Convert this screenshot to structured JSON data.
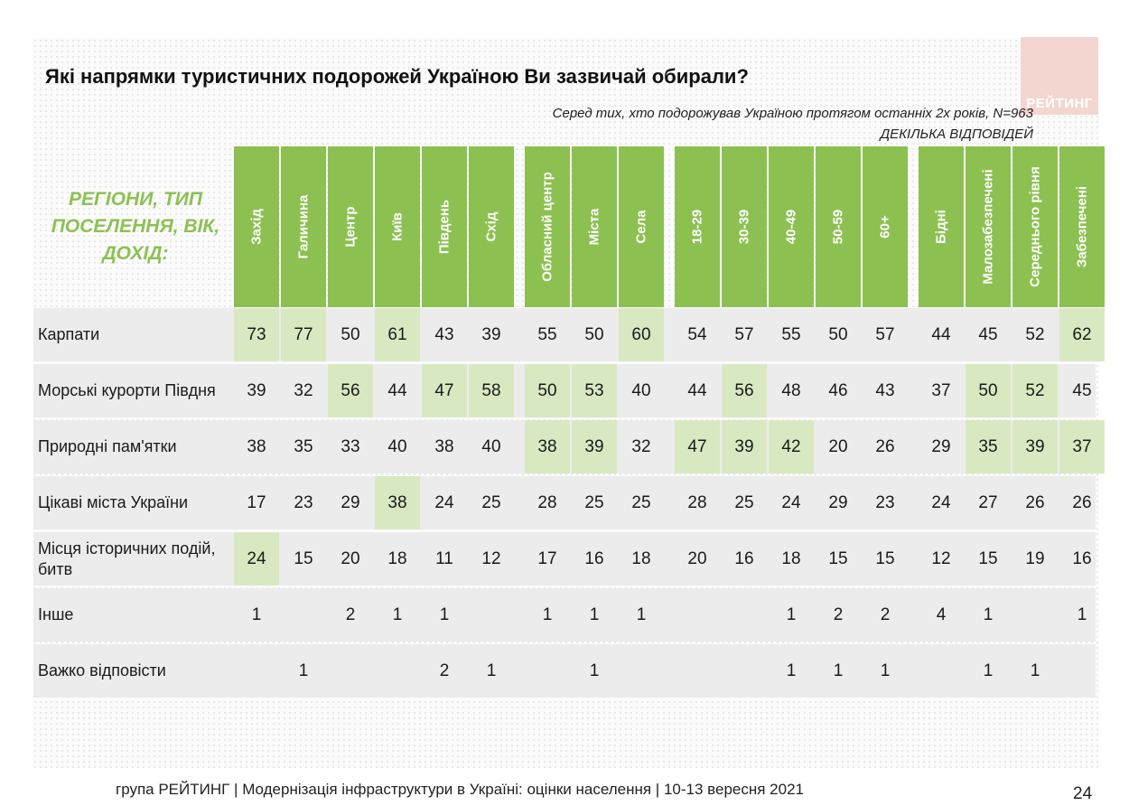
{
  "title": "Які напрямки туристичних подорожей Україною Ви зазвичай обирали?",
  "subtitle": "Серед тих, хто подорожував Україною протягом останніх 2х років, N=963",
  "subtitle2": "ДЕКІЛЬКА ВІДПОВІДЕЙ",
  "category_label": "РЕГІОНИ, ТИП ПОСЕЛЕННЯ, ВІК, ДОХІД:",
  "logo_text": "РЕЙТИНГ",
  "footer": "група РЕЙТИНГ | Модернізація інфраструктури в Україні: оцінки населення | 10-13 вересня 2021",
  "page_number": "24",
  "colors": {
    "header_green": "#8cc152",
    "highlight": "#d8e9c2",
    "row_bg": "#ececec",
    "logo_bg": "#f3d6d0"
  },
  "chart_data": {
    "type": "table",
    "title": "Які напрямки туристичних подорожей Україною Ви зазвичай обирали?",
    "column_groups": [
      [
        "Захід",
        "Галичина",
        "Центр",
        "Київ",
        "Південь",
        "Схід"
      ],
      [
        "Обласний центр",
        "Міста",
        "Села"
      ],
      [
        "18-29",
        "30-39",
        "40-49",
        "50-59",
        "60+"
      ],
      [
        "Бідні",
        "Малозабезпечені",
        "Середнього рівня",
        "Забезпечені"
      ]
    ],
    "columns": [
      "Захід",
      "Галичина",
      "Центр",
      "Київ",
      "Південь",
      "Схід",
      "Обласний центр",
      "Міста",
      "Села",
      "18-29",
      "30-39",
      "40-49",
      "50-59",
      "60+",
      "Бідні",
      "Малозабезпечені",
      "Середнього рівня",
      "Забезпечені"
    ],
    "rows": [
      {
        "label": "Карпати",
        "values": [
          "73",
          "77",
          "50",
          "61",
          "43",
          "39",
          "55",
          "50",
          "60",
          "54",
          "57",
          "55",
          "50",
          "57",
          "44",
          "45",
          "52",
          "62"
        ],
        "highlight": [
          0,
          1,
          3,
          8,
          17
        ]
      },
      {
        "label": "Морські курорти Півдня",
        "values": [
          "39",
          "32",
          "56",
          "44",
          "47",
          "58",
          "50",
          "53",
          "40",
          "44",
          "56",
          "48",
          "46",
          "43",
          "37",
          "50",
          "52",
          "45"
        ],
        "highlight": [
          2,
          4,
          5,
          6,
          7,
          10,
          15,
          16
        ]
      },
      {
        "label": "Природні пам'ятки",
        "values": [
          "38",
          "35",
          "33",
          "40",
          "38",
          "40",
          "38",
          "39",
          "32",
          "47",
          "39",
          "42",
          "20",
          "26",
          "29",
          "35",
          "39",
          "37"
        ],
        "highlight": [
          6,
          7,
          9,
          10,
          11,
          15,
          16,
          17
        ]
      },
      {
        "label": "Цікаві міста України",
        "values": [
          "17",
          "23",
          "29",
          "38",
          "24",
          "25",
          "28",
          "25",
          "25",
          "28",
          "25",
          "24",
          "29",
          "23",
          "24",
          "27",
          "26",
          "26"
        ],
        "highlight": [
          3
        ]
      },
      {
        "label": "Місця історичних подій, битв",
        "values": [
          "24",
          "15",
          "20",
          "18",
          "11",
          "12",
          "17",
          "16",
          "18",
          "20",
          "16",
          "18",
          "15",
          "15",
          "12",
          "15",
          "19",
          "16"
        ],
        "highlight": [
          0
        ]
      },
      {
        "label": "Інше",
        "values": [
          "1",
          "",
          "2",
          "1",
          "1",
          "",
          "1",
          "1",
          "1",
          "",
          "",
          "1",
          "2",
          "2",
          "4",
          "1",
          "",
          "1"
        ],
        "highlight": []
      },
      {
        "label": "Важко відповісти",
        "values": [
          "",
          "1",
          "",
          "",
          "2",
          "1",
          "",
          "1",
          "",
          "",
          "",
          "1",
          "1",
          "1",
          "",
          "1",
          "1",
          ""
        ],
        "highlight": []
      }
    ]
  }
}
